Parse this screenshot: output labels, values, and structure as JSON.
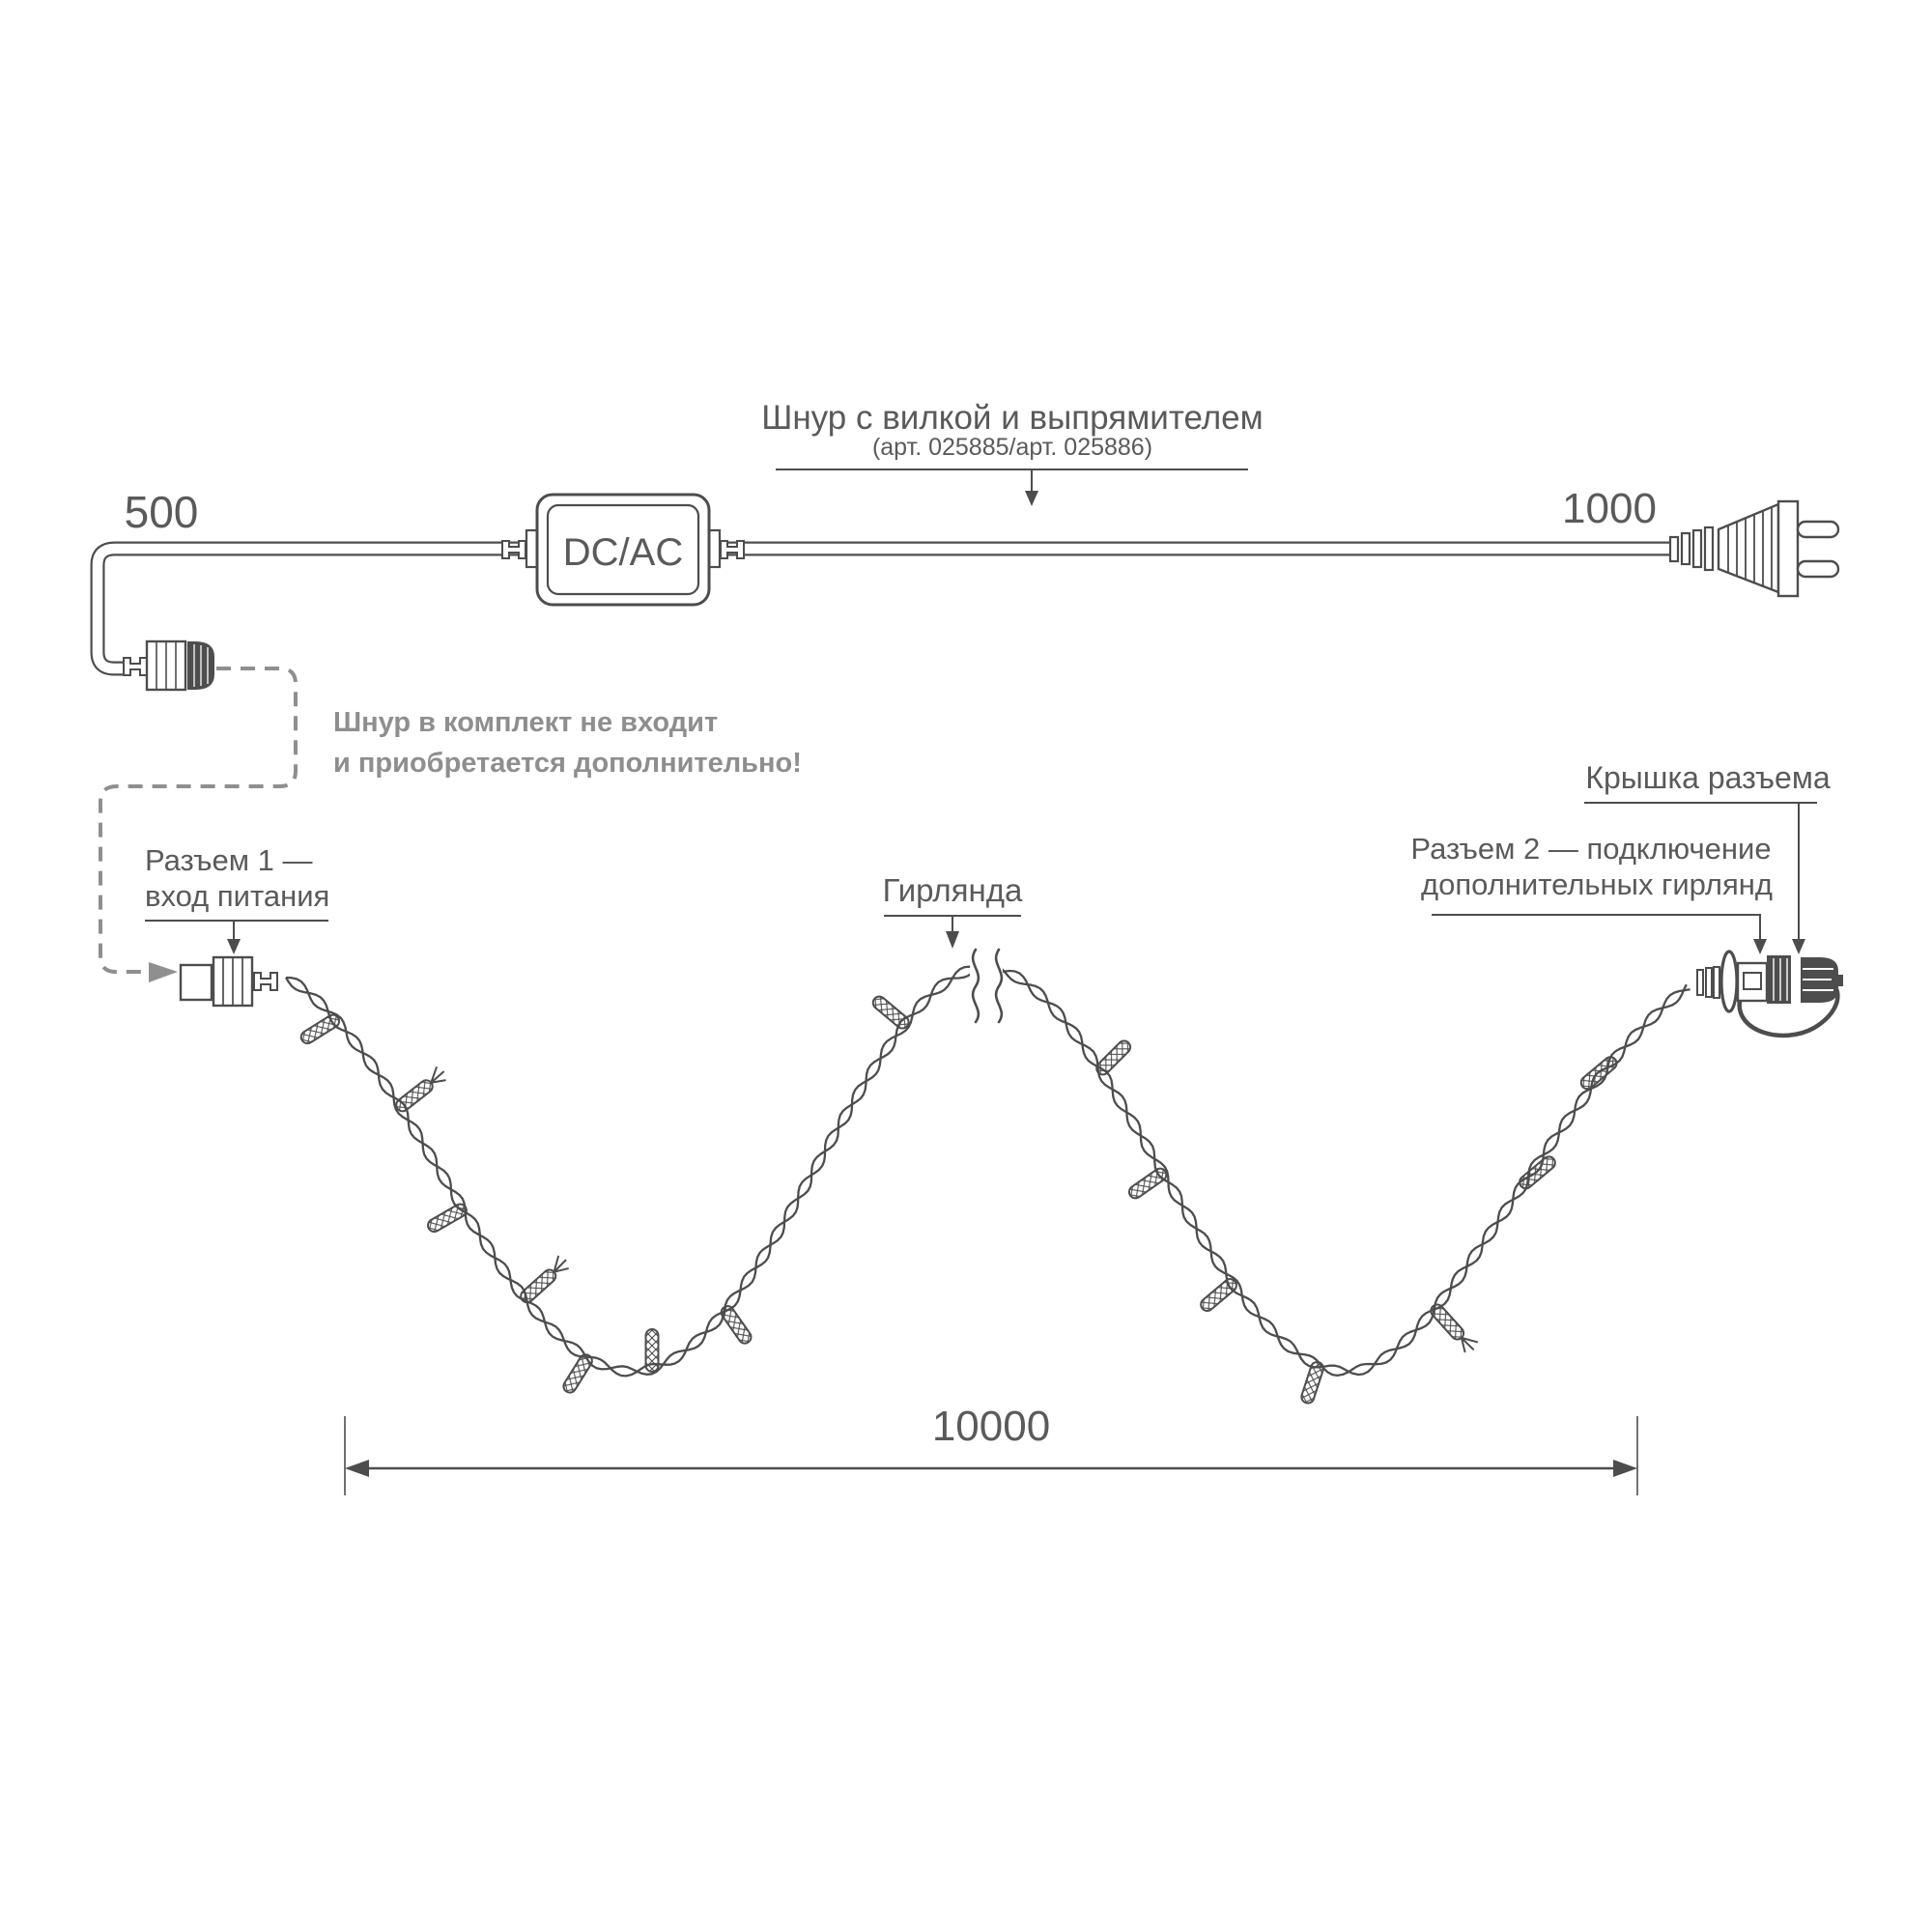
{
  "labels": {
    "cord_title": "Шнур с вилкой и выпрямителем",
    "cord_subtitle": "(арт. 025885/арт. 025886)",
    "len_500": "500",
    "len_1000": "1000",
    "len_total": "10000",
    "converter": "DC/AC",
    "note_line1": "Шнур в комплект не входит",
    "note_line2": "и приобретается дополнительно!",
    "conn1_line1": "Разъем 1 —",
    "conn1_line2": "вход питания",
    "garland": "Гирлянда",
    "cap_label": "Крышка разъема",
    "conn2_line1": "Разъем 2 — подключение",
    "conn2_line2": "дополнительных гирлянд"
  },
  "colors": {
    "line": "#4d4d4d",
    "text": "#5a5a5a",
    "note": "#8e8e8e",
    "dash": "#8f8f8f",
    "background": "#ffffff"
  },
  "components": [
    "power-plug",
    "dc-ac-converter",
    "power-cord-connector",
    "garland-connector-1",
    "twisted-garland-wire",
    "led-bulbs",
    "garland-connector-2",
    "connector-cap"
  ],
  "bulbs": [
    {
      "t": 0.03,
      "angle": 148,
      "whiskers": 0
    },
    {
      "t": 0.08,
      "angle": -38,
      "whiskers": 1
    },
    {
      "t": 0.135,
      "angle": 150,
      "whiskers": 0
    },
    {
      "t": 0.185,
      "angle": -42,
      "whiskers": 1
    },
    {
      "t": 0.225,
      "angle": 122,
      "whiskers": 0
    },
    {
      "t": 0.256,
      "angle": -90,
      "whiskers": 0
    },
    {
      "t": 0.3,
      "angle": 55,
      "whiskers": 0
    },
    {
      "t": 0.455,
      "angle": -140,
      "whiskers": 0
    },
    {
      "t": 0.575,
      "angle": -45,
      "whiskers": 0
    },
    {
      "t": 0.63,
      "angle": 145,
      "whiskers": 0
    },
    {
      "t": 0.69,
      "angle": 140,
      "whiskers": 0
    },
    {
      "t": 0.745,
      "angle": 108,
      "whiskers": 0
    },
    {
      "t": 0.81,
      "angle": 48,
      "whiskers": 1
    },
    {
      "t": 0.88,
      "angle": -40,
      "whiskers": 0
    },
    {
      "t": 0.95,
      "angle": 140,
      "whiskers": 0
    }
  ]
}
